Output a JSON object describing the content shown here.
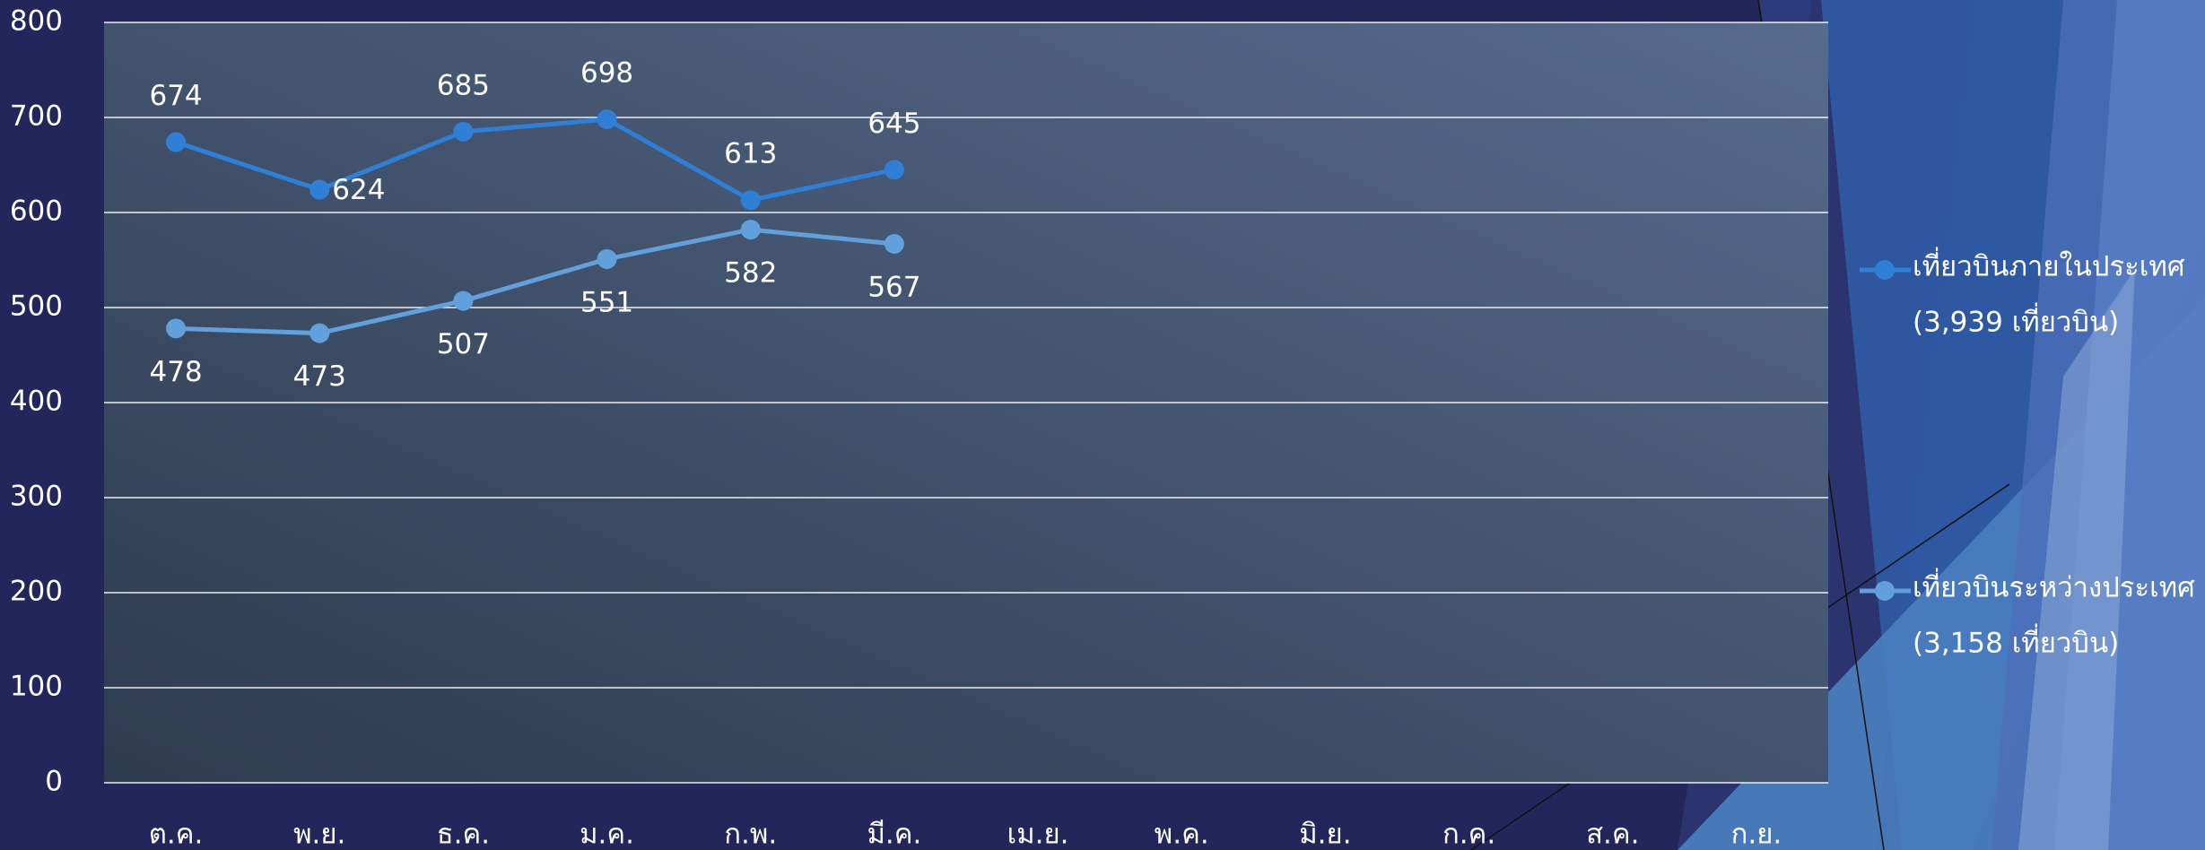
{
  "chart_data": {
    "type": "line",
    "categories": [
      "ต.ค.",
      "พ.ย.",
      "ธ.ค.",
      "ม.ค.",
      "ก.พ.",
      "มี.ค.",
      "เม.ย.",
      "พ.ค.",
      "มิ.ย.",
      "ก.ค.",
      "ส.ค.",
      "ก.ย."
    ],
    "series": [
      {
        "name": "เที่ยวบินภายในประเทศ",
        "total_label": "(3,939 เที่ยวบิน)",
        "color": "#2f7fd6",
        "values": [
          674,
          624,
          685,
          698,
          613,
          645,
          null,
          null,
          null,
          null,
          null,
          null
        ]
      },
      {
        "name": "เที่ยวบินระหว่างประเทศ",
        "total_label": "(3,158 เที่ยวบิน)",
        "color": "#62a0dc",
        "values": [
          478,
          473,
          507,
          551,
          582,
          567,
          null,
          null,
          null,
          null,
          null,
          null
        ]
      }
    ],
    "ylim": [
      0,
      800
    ],
    "yticks": [
      0,
      100,
      200,
      300,
      400,
      500,
      600,
      700,
      800
    ],
    "grid": true,
    "legend": "right"
  }
}
